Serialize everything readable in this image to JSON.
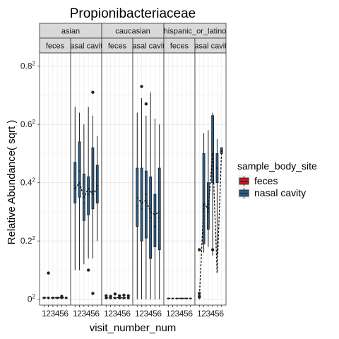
{
  "chart_data": {
    "type": "boxplot",
    "title": "Propionibacteriaceae",
    "xlabel": "visit_number_num",
    "ylabel": "Relative Abundance( sqrt )",
    "y_ticks": [
      {
        "value": 0.0,
        "label": "0",
        "sup": "2"
      },
      {
        "value": 0.2,
        "label": "0.2",
        "sup": "2"
      },
      {
        "value": 0.4,
        "label": "0.4",
        "sup": "2"
      },
      {
        "value": 0.6,
        "label": "0.6",
        "sup": "2"
      },
      {
        "value": 0.8,
        "label": "0.8",
        "sup": "2"
      }
    ],
    "ylim": [
      -0.02,
      0.845
    ],
    "x_tick_labels": [
      "1",
      "2",
      "3",
      "4",
      "5",
      "6"
    ],
    "legend": {
      "title": "sample_body_site",
      "position": "right",
      "entries": [
        {
          "label": "feces",
          "color": "#cb181d"
        },
        {
          "label": "nasal cavity",
          "color": "#2b5f8a"
        }
      ]
    },
    "facet_rows": [
      "asian",
      "caucasian",
      "hispanic_or_latino"
    ],
    "facet_cols": [
      "feces",
      "nasal cavity"
    ],
    "panels": [
      {
        "group": "asian",
        "site": "feces",
        "boxes": [
          {
            "x": 1,
            "q1": 0.003,
            "median": 0.005,
            "q3": 0.007,
            "min": 0.0,
            "max": 0.009
          },
          {
            "x": 2,
            "q1": 0.003,
            "median": 0.005,
            "q3": 0.007,
            "min": 0.0,
            "max": 0.009
          },
          {
            "x": 3,
            "q1": 0.003,
            "median": 0.005,
            "q3": 0.007,
            "min": 0.0,
            "max": 0.009
          },
          {
            "x": 4,
            "q1": 0.003,
            "median": 0.005,
            "q3": 0.007,
            "min": 0.0,
            "max": 0.009
          },
          {
            "x": 5,
            "q1": 0.003,
            "median": 0.005,
            "q3": 0.007,
            "min": 0.0,
            "max": 0.009
          },
          {
            "x": 6,
            "q1": 0.003,
            "median": 0.005,
            "q3": 0.007,
            "min": 0.0,
            "max": 0.009
          }
        ],
        "outliers": [
          [
            2,
            0.09
          ],
          [
            5,
            0.01
          ]
        ],
        "mean_line": [
          0.005,
          0.005,
          0.005,
          0.005,
          0.005,
          0.005
        ]
      },
      {
        "group": "asian",
        "site": "nasal cavity",
        "boxes": [
          {
            "x": 1,
            "q1": 0.33,
            "median": 0.38,
            "q3": 0.47,
            "min": 0.1,
            "max": 0.66
          },
          {
            "x": 2,
            "q1": 0.35,
            "median": 0.44,
            "q3": 0.54,
            "min": 0.1,
            "max": 0.64
          },
          {
            "x": 3,
            "q1": 0.27,
            "median": 0.33,
            "q3": 0.43,
            "min": 0.12,
            "max": 0.6
          },
          {
            "x": 4,
            "q1": 0.29,
            "median": 0.36,
            "q3": 0.42,
            "min": 0.14,
            "max": 0.66
          },
          {
            "x": 5,
            "q1": 0.31,
            "median": 0.37,
            "q3": 0.52,
            "min": 0.14,
            "max": 0.63
          },
          {
            "x": 6,
            "q1": 0.33,
            "median": 0.39,
            "q3": 0.46,
            "min": 0.2,
            "max": 0.56
          }
        ],
        "outliers": [
          [
            5,
            0.71
          ],
          [
            5,
            0.02
          ],
          [
            4,
            0.1
          ]
        ],
        "mean_line": [
          0.38,
          0.4,
          0.35,
          0.38,
          0.36,
          0.38
        ]
      },
      {
        "group": "caucasian",
        "site": "feces",
        "boxes": [
          {
            "x": 1,
            "q1": 0.002,
            "median": 0.004,
            "q3": 0.006,
            "min": 0.0,
            "max": 0.009
          },
          {
            "x": 2,
            "q1": 0.002,
            "median": 0.004,
            "q3": 0.006,
            "min": 0.0,
            "max": 0.009
          },
          {
            "x": 3,
            "q1": 0.002,
            "median": 0.004,
            "q3": 0.006,
            "min": 0.0,
            "max": 0.009
          },
          {
            "x": 4,
            "q1": 0.002,
            "median": 0.004,
            "q3": 0.006,
            "min": 0.0,
            "max": 0.009
          },
          {
            "x": 5,
            "q1": 0.002,
            "median": 0.004,
            "q3": 0.006,
            "min": 0.0,
            "max": 0.009
          },
          {
            "x": 6,
            "q1": 0.002,
            "median": 0.004,
            "q3": 0.006,
            "min": 0.0,
            "max": 0.009
          }
        ],
        "outliers": [
          [
            1,
            0.012
          ],
          [
            2,
            0.01
          ],
          [
            3,
            0.018
          ],
          [
            4,
            0.012
          ],
          [
            5,
            0.014
          ],
          [
            6,
            0.012
          ]
        ],
        "mean_line": [
          0.005,
          0.005,
          0.006,
          0.005,
          0.005,
          0.005
        ]
      },
      {
        "group": "caucasian",
        "site": "nasal cavity",
        "boxes": [
          {
            "x": 1,
            "q1": 0.25,
            "median": 0.32,
            "q3": 0.45,
            "min": 0.0,
            "max": 0.64
          },
          {
            "x": 2,
            "q1": 0.2,
            "median": 0.31,
            "q3": 0.45,
            "min": 0.0,
            "max": 0.69
          },
          {
            "x": 3,
            "q1": 0.21,
            "median": 0.36,
            "q3": 0.44,
            "min": 0.0,
            "max": 0.63
          },
          {
            "x": 4,
            "q1": 0.14,
            "median": 0.28,
            "q3": 0.42,
            "min": 0.0,
            "max": 0.71
          },
          {
            "x": 5,
            "q1": 0.18,
            "median": 0.25,
            "q3": 0.36,
            "min": 0.0,
            "max": 0.62
          },
          {
            "x": 6,
            "q1": 0.17,
            "median": 0.28,
            "q3": 0.45,
            "min": 0.0,
            "max": 0.6
          }
        ],
        "outliers": [
          [
            2,
            0.73
          ],
          [
            3,
            0.67
          ]
        ],
        "mean_line": [
          0.35,
          0.33,
          0.34,
          0.3,
          0.29,
          0.3
        ]
      },
      {
        "group": "hispanic_or_latino",
        "site": "feces",
        "boxes": [
          {
            "x": 1,
            "q1": 0.002,
            "median": 0.003,
            "q3": 0.004,
            "min": 0.0,
            "max": 0.005
          },
          {
            "x": 2,
            "q1": 0.002,
            "median": 0.003,
            "q3": 0.004,
            "min": 0.0,
            "max": 0.005
          },
          {
            "x": 3,
            "q1": 0.002,
            "median": 0.003,
            "q3": 0.004,
            "min": 0.0,
            "max": 0.005
          },
          {
            "x": 4,
            "q1": 0.002,
            "median": 0.003,
            "q3": 0.004,
            "min": 0.0,
            "max": 0.005
          },
          {
            "x": 5,
            "q1": 0.002,
            "median": 0.003,
            "q3": 0.004,
            "min": 0.0,
            "max": 0.005
          },
          {
            "x": 6,
            "q1": 0.002,
            "median": 0.003,
            "q3": 0.004,
            "min": 0.0,
            "max": 0.005
          }
        ],
        "outliers": [],
        "mean_line": [
          0.003,
          0.003,
          0.003,
          0.003,
          0.003,
          0.003
        ]
      },
      {
        "group": "hispanic_or_latino",
        "site": "nasal cavity",
        "boxes": [
          {
            "x": 1,
            "q1": 0.004,
            "median": 0.006,
            "q3": 0.009,
            "min": 0.0,
            "max": 0.01
          },
          {
            "x": 2,
            "q1": 0.19,
            "median": 0.23,
            "q3": 0.5,
            "min": 0.16,
            "max": 0.57
          },
          {
            "x": 3,
            "q1": 0.24,
            "median": 0.3,
            "q3": 0.4,
            "min": 0.18,
            "max": 0.58
          },
          {
            "x": 4,
            "q1": 0.4,
            "median": 0.5,
            "q3": 0.63,
            "min": 0.15,
            "max": 0.64
          },
          {
            "x": 5,
            "q1": 0.4,
            "median": 0.45,
            "q3": 0.5,
            "min": 0.15,
            "max": 0.55
          },
          {
            "x": 6,
            "q1": 0.5,
            "median": 0.51,
            "q3": 0.52,
            "min": 0.5,
            "max": 0.52
          }
        ],
        "outliers": [
          [
            1,
            0.17
          ],
          [
            1,
            0.02
          ],
          [
            1,
            0.01
          ],
          [
            4,
            0.17
          ]
        ],
        "mean_line": [
          0.004,
          0.33,
          0.31,
          0.5,
          0.09,
          0.51
        ]
      }
    ]
  }
}
